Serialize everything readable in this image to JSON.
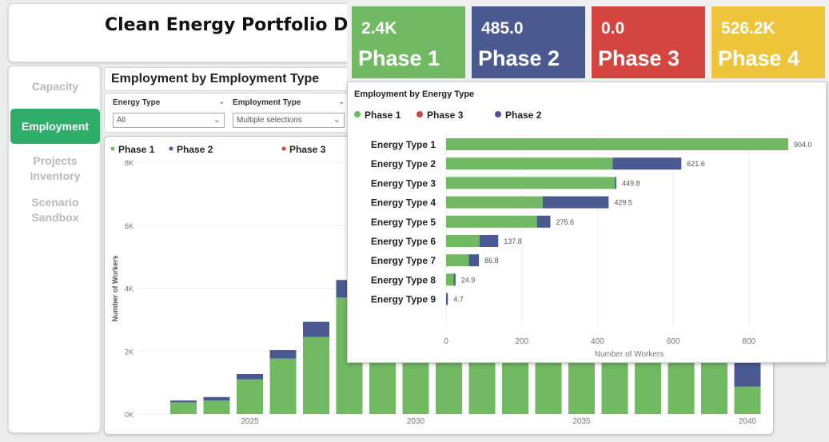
{
  "title": "Clean Energy  Portfolio Das",
  "nav": {
    "items": [
      {
        "label": "Capacity"
      },
      {
        "label": "Employment",
        "active": true
      },
      {
        "label": "Projects Inventory"
      },
      {
        "label": "Scenario Sandbox"
      }
    ]
  },
  "section_header": "Employment by Employment Type",
  "filters": {
    "energy_type": {
      "label": "Energy Type",
      "value": "All"
    },
    "employment_type": {
      "label": "Employment Type",
      "value": "Multiple selections"
    }
  },
  "kpis": [
    {
      "value": "2.4K",
      "label": "Phase 1",
      "color": "#72b963"
    },
    {
      "value": "485.0",
      "label": "Phase 2",
      "color": "#4a5a90"
    },
    {
      "value": "0.0",
      "label": "Phase 3",
      "color": "#d4453f"
    },
    {
      "value": "526.2K",
      "label": "Phase 4",
      "color": "#eec43b"
    }
  ],
  "colors": {
    "phase1": "#72b963",
    "phase2": "#4a5a90",
    "phase3": "#d4453f"
  },
  "chart_data": [
    {
      "type": "bar",
      "orientation": "vertical",
      "stacked": true,
      "title": "",
      "xlabel": "",
      "ylabel": "Number of Workers",
      "legend": [
        "Phase 1",
        "Phase 2",
        "Phase 3"
      ],
      "x_ticks": [
        "2025",
        "2030",
        "2035",
        "2040"
      ],
      "y_ticks": [
        "0K",
        "2K",
        "4K",
        "6K",
        "8K"
      ],
      "ylim": [
        0,
        8000
      ],
      "x": [
        2023,
        2024,
        2025,
        2026,
        2027,
        2028,
        2029,
        2030,
        2031,
        2032,
        2033,
        2034,
        2035,
        2036,
        2037,
        2038,
        2039,
        2040
      ],
      "series": [
        {
          "name": "Phase 1",
          "values": [
            370,
            430,
            1100,
            1760,
            2450,
            3700,
            1700,
            1700,
            1700,
            1700,
            1700,
            1700,
            1700,
            1700,
            1700,
            1700,
            1700,
            870
          ]
        },
        {
          "name": "Phase 2",
          "values": [
            60,
            110,
            170,
            270,
            480,
            560,
            0,
            0,
            0,
            0,
            0,
            0,
            0,
            0,
            0,
            0,
            0,
            1200
          ]
        },
        {
          "name": "Phase 3",
          "values": [
            0,
            0,
            0,
            0,
            0,
            0,
            0,
            0,
            0,
            0,
            0,
            0,
            0,
            0,
            0,
            0,
            0,
            0
          ]
        }
      ]
    },
    {
      "type": "bar",
      "orientation": "horizontal",
      "stacked": true,
      "title": "Employment by Energy Type",
      "xlabel": "Number of Workers",
      "legend": [
        "Phase 1",
        "Phase 3",
        "Phase 2"
      ],
      "categories": [
        "Energy Type 1",
        "Energy Type 2",
        "Energy Type 3",
        "Energy Type 4",
        "Energy Type 5",
        "Energy Type 6",
        "Energy Type 7",
        "Energy Type 8",
        "Energy Type 9"
      ],
      "totals": [
        "904.0",
        "621.6",
        "449.8",
        "429.5",
        "275.6",
        "137.8",
        "86.8",
        "24.9",
        "4.7"
      ],
      "x_ticks": [
        "0",
        "200",
        "400",
        "600",
        "800"
      ],
      "xlim": [
        0,
        904
      ],
      "series": [
        {
          "name": "Phase 1",
          "values": [
            904.0,
            440.0,
            446.0,
            255.0,
            240.0,
            88.0,
            60.0,
            20.0,
            0.0
          ]
        },
        {
          "name": "Phase 2",
          "values": [
            0.0,
            181.6,
            3.8,
            174.5,
            35.6,
            49.8,
            26.8,
            4.9,
            4.7
          ]
        },
        {
          "name": "Phase 3",
          "values": [
            0,
            0,
            0,
            0,
            0,
            0,
            0,
            0,
            0
          ]
        }
      ]
    }
  ]
}
